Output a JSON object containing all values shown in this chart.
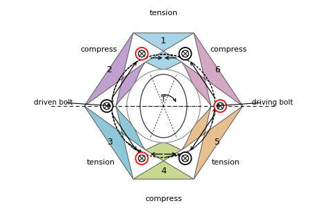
{
  "bolt_angles_deg": [
    112.5,
    67.5,
    180.0,
    247.5,
    292.5,
    0.0
  ],
  "bolt_r": 0.68,
  "red_bolts": [
    0,
    3,
    4,
    1
  ],
  "black_bolts": [
    2,
    5
  ],
  "seg_colors": [
    "#a8d4e8",
    "#c0a0ce",
    "#8ec8d8",
    "#c8d890",
    "#e8c090",
    "#d4a8c4"
  ],
  "seg_label_angles": [
    90.0,
    146.25,
    213.75,
    270.0,
    326.25,
    33.75
  ],
  "seg_label_r": 0.78,
  "seg_labels": [
    "1",
    "2",
    "3",
    "4",
    "5",
    "6"
  ],
  "R_outer": 0.95,
  "R_inner": 0.52,
  "R_oval_x": 0.28,
  "R_oval_y": 0.38,
  "R_arc_arrow": 0.62,
  "stress_labels": {
    "top": [
      "tension",
      0.0,
      1.12
    ],
    "bottom": [
      "compress",
      0.0,
      -1.12
    ],
    "upper_left": [
      "compress",
      -0.72,
      0.72
    ],
    "upper_right": [
      "compress",
      0.72,
      0.72
    ],
    "lower_left": [
      "tension",
      -0.72,
      -0.72
    ],
    "lower_right": [
      "tension",
      0.72,
      -0.72
    ]
  },
  "driven_bolt_text": "driven bolt",
  "driving_bolt_text": "driving bolt",
  "T_text": "T"
}
